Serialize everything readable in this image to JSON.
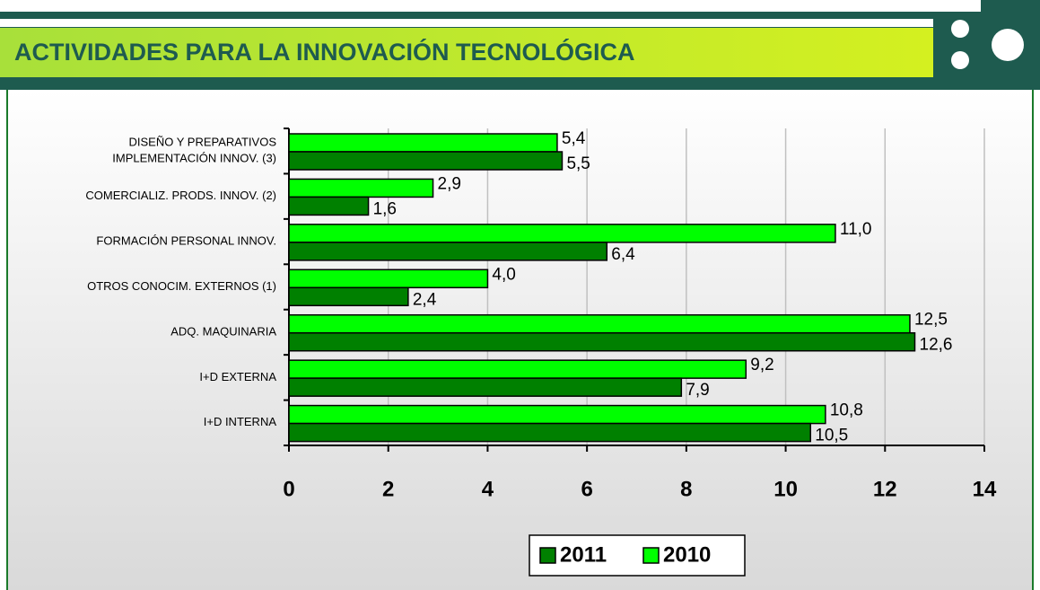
{
  "chart_data": {
    "type": "barh",
    "title": "ACTIVIDADES PARA LA INNOVACIÓN TECNOLÓGICA",
    "categories": [
      [
        "DISEÑO Y PREPARATIVOS",
        "IMPLEMENTACIÓN INNOV. (3)"
      ],
      "COMERCIALIZ. PRODS. INNOV. (2)",
      "FORMACIÓN PERSONAL INNOV.",
      "OTROS CONOCIM. EXTERNOS (1)",
      "ADQ. MAQUINARIA",
      "I+D EXTERNA",
      "I+D INTERNA"
    ],
    "series": [
      {
        "name": "2011",
        "color": "#008000",
        "values": [
          5.5,
          1.6,
          6.4,
          2.4,
          12.6,
          7.9,
          10.5
        ],
        "value_labels": [
          "5,5",
          "1,6",
          "6,4",
          "2,4",
          "12,6",
          "7,9",
          "10,5"
        ]
      },
      {
        "name": "2010",
        "color": "#00ff00",
        "values": [
          5.4,
          2.9,
          11.0,
          4.0,
          12.5,
          9.2,
          10.8
        ],
        "value_labels": [
          "5,4",
          "2,9",
          "11,0",
          "4,0",
          "12,5",
          "9,2",
          "10,8"
        ]
      }
    ],
    "xlim": [
      0,
      14
    ],
    "xticks": [
      0,
      2,
      4,
      6,
      8,
      10,
      12,
      14
    ],
    "grid": true,
    "legend": "bottom"
  }
}
